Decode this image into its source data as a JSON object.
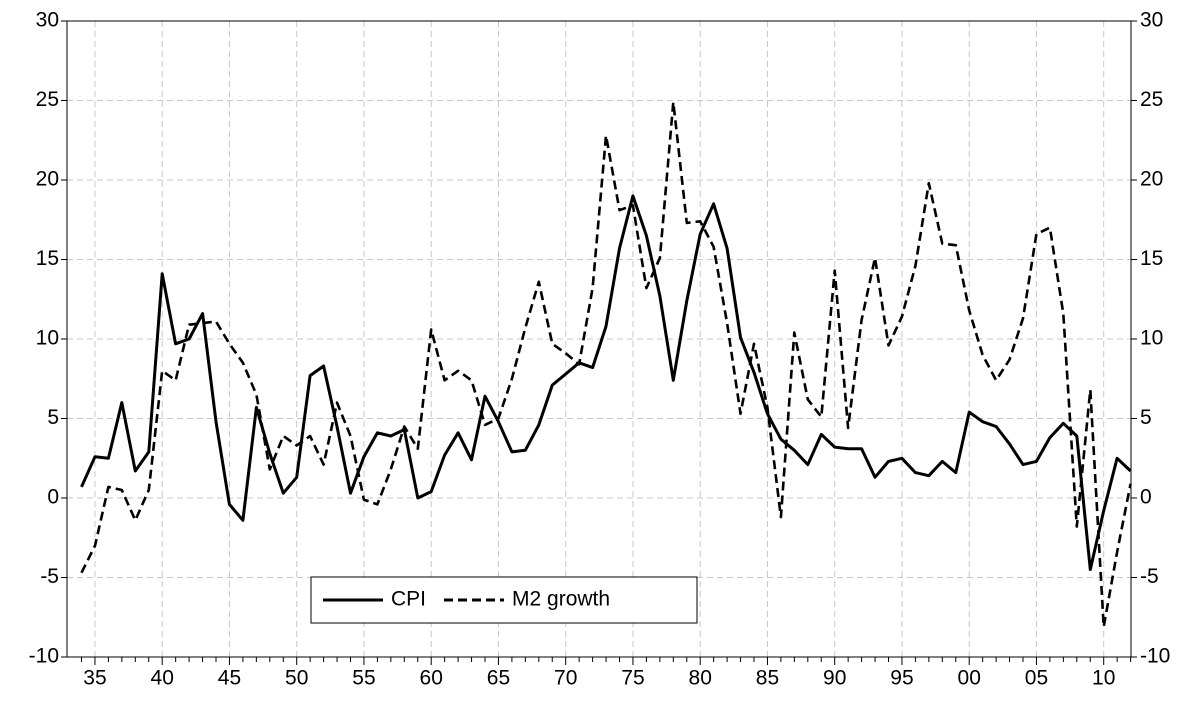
{
  "chart_data": {
    "type": "line",
    "categories": [
      null,
      "35",
      null,
      null,
      null,
      null,
      "40",
      null,
      null,
      null,
      null,
      "45",
      null,
      null,
      null,
      null,
      "50",
      null,
      null,
      null,
      null,
      "55",
      null,
      null,
      null,
      null,
      "60",
      null,
      null,
      null,
      null,
      "65",
      null,
      null,
      null,
      null,
      "70",
      null,
      null,
      null,
      null,
      "75",
      null,
      null,
      null,
      null,
      "80",
      null,
      null,
      null,
      null,
      "85",
      null,
      null,
      null,
      null,
      "90",
      null,
      null,
      null,
      null,
      "95",
      null,
      null,
      null,
      null,
      "00",
      null,
      null,
      null,
      null,
      "05",
      null,
      null,
      null,
      null,
      "10",
      null,
      null
    ],
    "series": [
      {
        "name": "CPI",
        "color": "#000000",
        "dash": false,
        "values": [
          0.7,
          2.6,
          2.5,
          6.0,
          1.7,
          2.9,
          14.1,
          9.7,
          10.0,
          11.6,
          4.8,
          -0.4,
          -1.4,
          5.7,
          2.8,
          0.3,
          1.3,
          7.7,
          8.3,
          4.5,
          0.3,
          2.6,
          4.1,
          3.9,
          4.3,
          0.0,
          0.4,
          2.7,
          4.1,
          2.4,
          6.4,
          4.8,
          2.9,
          3.0,
          4.6,
          7.1,
          7.8,
          8.5,
          8.2,
          10.8,
          15.7,
          19.0,
          16.5,
          12.7,
          7.4,
          12.4,
          16.6,
          18.5,
          15.7,
          10.1,
          7.9,
          5.3,
          3.7,
          3.0,
          2.1,
          4.0,
          3.2,
          3.1,
          3.1,
          1.3,
          2.3,
          2.5,
          1.6,
          1.4,
          2.3,
          1.6,
          5.4,
          4.8,
          4.5,
          3.4,
          2.1,
          2.3,
          3.8,
          4.7,
          3.9,
          -4.5,
          -0.8,
          2.5,
          1.7
        ]
      },
      {
        "name": "M2 growth",
        "color": "#000000",
        "dash": true,
        "values": [
          -4.7,
          -3.0,
          0.7,
          0.5,
          -1.4,
          0.5,
          8.0,
          7.4,
          10.9,
          11.0,
          11.1,
          9.7,
          8.5,
          6.5,
          1.8,
          3.9,
          3.3,
          3.9,
          2.1,
          6.0,
          3.9,
          -0.1,
          -0.4,
          1.8,
          4.5,
          3.1,
          10.6,
          7.4,
          8.0,
          7.4,
          4.6,
          5.0,
          7.5,
          10.7,
          13.6,
          9.7,
          9.1,
          8.4,
          13.2,
          22.8,
          18.1,
          18.4,
          13.2,
          15.1,
          24.9,
          17.3,
          17.4,
          15.8,
          11.0,
          5.3,
          9.7,
          5.7,
          -1.2,
          10.4,
          6.2,
          5.1,
          14.3,
          4.4,
          11.2,
          15.1,
          9.6,
          11.4,
          14.6,
          19.8,
          16.0,
          15.9,
          11.8,
          9.0,
          7.4,
          8.7,
          11.3,
          16.6,
          17.0,
          11.6,
          -1.8,
          6.8,
          -8.1,
          -3.4,
          0.9
        ]
      }
    ],
    "ylim": [
      -10,
      30
    ],
    "yticks": [
      -10,
      -5,
      0,
      5,
      10,
      15,
      20,
      25,
      30
    ],
    "y2lim": [
      -10,
      30
    ],
    "y2ticks": [
      -10,
      -5,
      0,
      5,
      10,
      15,
      20,
      25,
      30
    ],
    "grid": true,
    "legend": "lower left"
  }
}
